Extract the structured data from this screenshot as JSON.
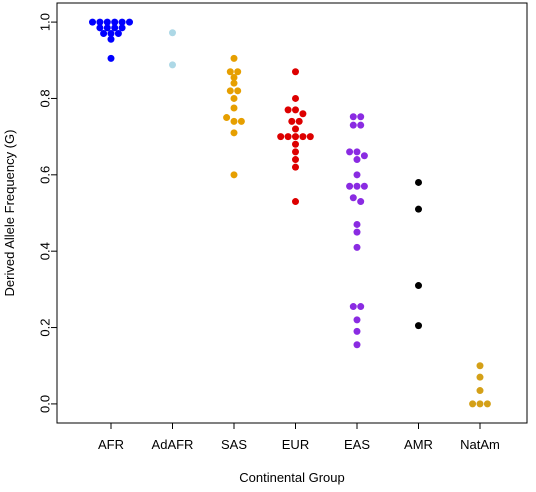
{
  "chart_data": {
    "type": "scatter",
    "title": "",
    "xlabel": "Continental Group",
    "ylabel": "Derived Allele Frequency (G)",
    "ylim": [
      -0.05,
      1.05
    ],
    "yticks": [
      "0.0",
      "0.2",
      "0.4",
      "0.6",
      "0.8",
      "1.0"
    ],
    "categories": [
      "AFR",
      "AdAFR",
      "SAS",
      "EUR",
      "EAS",
      "AMR",
      "NatAm"
    ],
    "grid": false,
    "legend": "none",
    "series": [
      {
        "category": "AFR",
        "color": "#0000ff",
        "values": [
          1.0,
          1.0,
          1.0,
          1.0,
          1.0,
          1.0,
          0.985,
          0.985,
          0.985,
          0.985,
          0.97,
          0.97,
          0.97,
          0.955,
          0.905
        ]
      },
      {
        "category": "AdAFR",
        "color": "#add8e6",
        "values": [
          0.972,
          0.888
        ]
      },
      {
        "category": "SAS",
        "color": "#e69f00",
        "values": [
          0.905,
          0.87,
          0.87,
          0.855,
          0.84,
          0.82,
          0.82,
          0.8,
          0.775,
          0.75,
          0.74,
          0.74,
          0.71,
          0.6
        ]
      },
      {
        "category": "EUR",
        "color": "#dd0000",
        "values": [
          0.87,
          0.8,
          0.77,
          0.77,
          0.76,
          0.74,
          0.74,
          0.72,
          0.7,
          0.7,
          0.7,
          0.7,
          0.7,
          0.68,
          0.66,
          0.64,
          0.62,
          0.53
        ]
      },
      {
        "category": "EAS",
        "color": "#8a2be2",
        "values": [
          0.752,
          0.752,
          0.73,
          0.73,
          0.66,
          0.66,
          0.65,
          0.64,
          0.6,
          0.57,
          0.57,
          0.57,
          0.54,
          0.53,
          0.47,
          0.45,
          0.41,
          0.255,
          0.255,
          0.22,
          0.19,
          0.155
        ]
      },
      {
        "category": "AMR",
        "color": "#000000",
        "values": [
          0.58,
          0.51,
          0.31,
          0.205
        ]
      },
      {
        "category": "NatAm",
        "color": "#d4a017",
        "values": [
          0.1,
          0.07,
          0.035,
          0.0,
          0.0,
          0.0
        ]
      }
    ]
  }
}
